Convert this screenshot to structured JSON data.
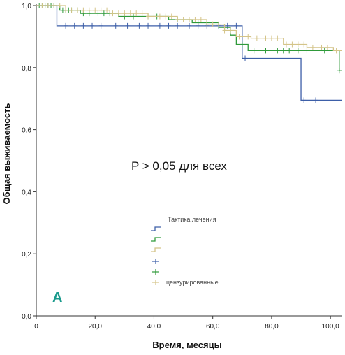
{
  "chart_data": {
    "type": "line",
    "subtype": "kaplan-meier step",
    "title": "",
    "xlabel": "Время, месяцы",
    "ylabel": "Общая выживаемость",
    "xlim": [
      0,
      104
    ],
    "ylim": [
      0,
      1.0
    ],
    "x_ticks": [
      "0",
      "20,0",
      "40,0",
      "60,0",
      "80,0",
      "100,0"
    ],
    "y_ticks": [
      "0,0",
      "0,2",
      "0,4",
      "0,6",
      "0,8",
      "1,0"
    ],
    "annotation": "P > 0,05 для всех",
    "panel_label": "A",
    "legend": {
      "title": "Тактика лечения",
      "placement": "bottom-center",
      "entries": [
        {
          "series_index": 0,
          "glyph": "step"
        },
        {
          "series_index": 1,
          "glyph": "step"
        },
        {
          "series_index": 2,
          "glyph": "step"
        },
        {
          "series_index": 0,
          "glyph": "plus"
        },
        {
          "series_index": 1,
          "glyph": "plus"
        },
        {
          "series_index": 2,
          "glyph": "plus",
          "label": "цензурированные"
        }
      ]
    },
    "series": [
      {
        "color": "#3d5fa8",
        "steps": [
          [
            0,
            1.0
          ],
          [
            7,
            0.935
          ],
          [
            70,
            0.83
          ],
          [
            90,
            0.695
          ],
          [
            104,
            0.695
          ]
        ],
        "censored": [
          4,
          10,
          13,
          16,
          19,
          22,
          27,
          31,
          35,
          38,
          42,
          45,
          48,
          52,
          55,
          58,
          62,
          65,
          68,
          71,
          91,
          95
        ]
      },
      {
        "color": "#2f9a3a",
        "steps": [
          [
            0,
            1.0
          ],
          [
            8,
            0.985
          ],
          [
            15,
            0.975
          ],
          [
            28,
            0.965
          ],
          [
            45,
            0.955
          ],
          [
            53,
            0.945
          ],
          [
            62,
            0.93
          ],
          [
            66,
            0.905
          ],
          [
            68,
            0.875
          ],
          [
            72,
            0.855
          ],
          [
            103,
            0.855
          ],
          [
            103,
            0.79
          ],
          [
            104,
            0.79
          ]
        ],
        "censored": [
          1,
          2,
          3,
          4,
          5,
          6,
          7,
          9,
          10,
          11,
          12,
          14,
          16,
          18,
          21,
          23,
          25,
          30,
          33,
          38,
          41,
          48,
          55,
          58,
          64,
          70,
          74,
          78,
          82,
          84,
          86,
          89,
          92,
          98,
          103
        ]
      },
      {
        "color": "#d4c489",
        "steps": [
          [
            0,
            1.0
          ],
          [
            10,
            0.985
          ],
          [
            25,
            0.975
          ],
          [
            38,
            0.965
          ],
          [
            48,
            0.955
          ],
          [
            58,
            0.94
          ],
          [
            64,
            0.92
          ],
          [
            68,
            0.9
          ],
          [
            73,
            0.895
          ],
          [
            84,
            0.875
          ],
          [
            92,
            0.865
          ],
          [
            101,
            0.855
          ],
          [
            104,
            0.855
          ]
        ],
        "censored": [
          2,
          4,
          6,
          8,
          10,
          12,
          14,
          16,
          18,
          20,
          22,
          24,
          26,
          28,
          30,
          32,
          34,
          36,
          38,
          40,
          42,
          44,
          46,
          48,
          50,
          52,
          54,
          56,
          58,
          60,
          62,
          64,
          66,
          69,
          72,
          75,
          78,
          80,
          82,
          85,
          87,
          89,
          91,
          94,
          97,
          99,
          102
        ]
      }
    ]
  }
}
